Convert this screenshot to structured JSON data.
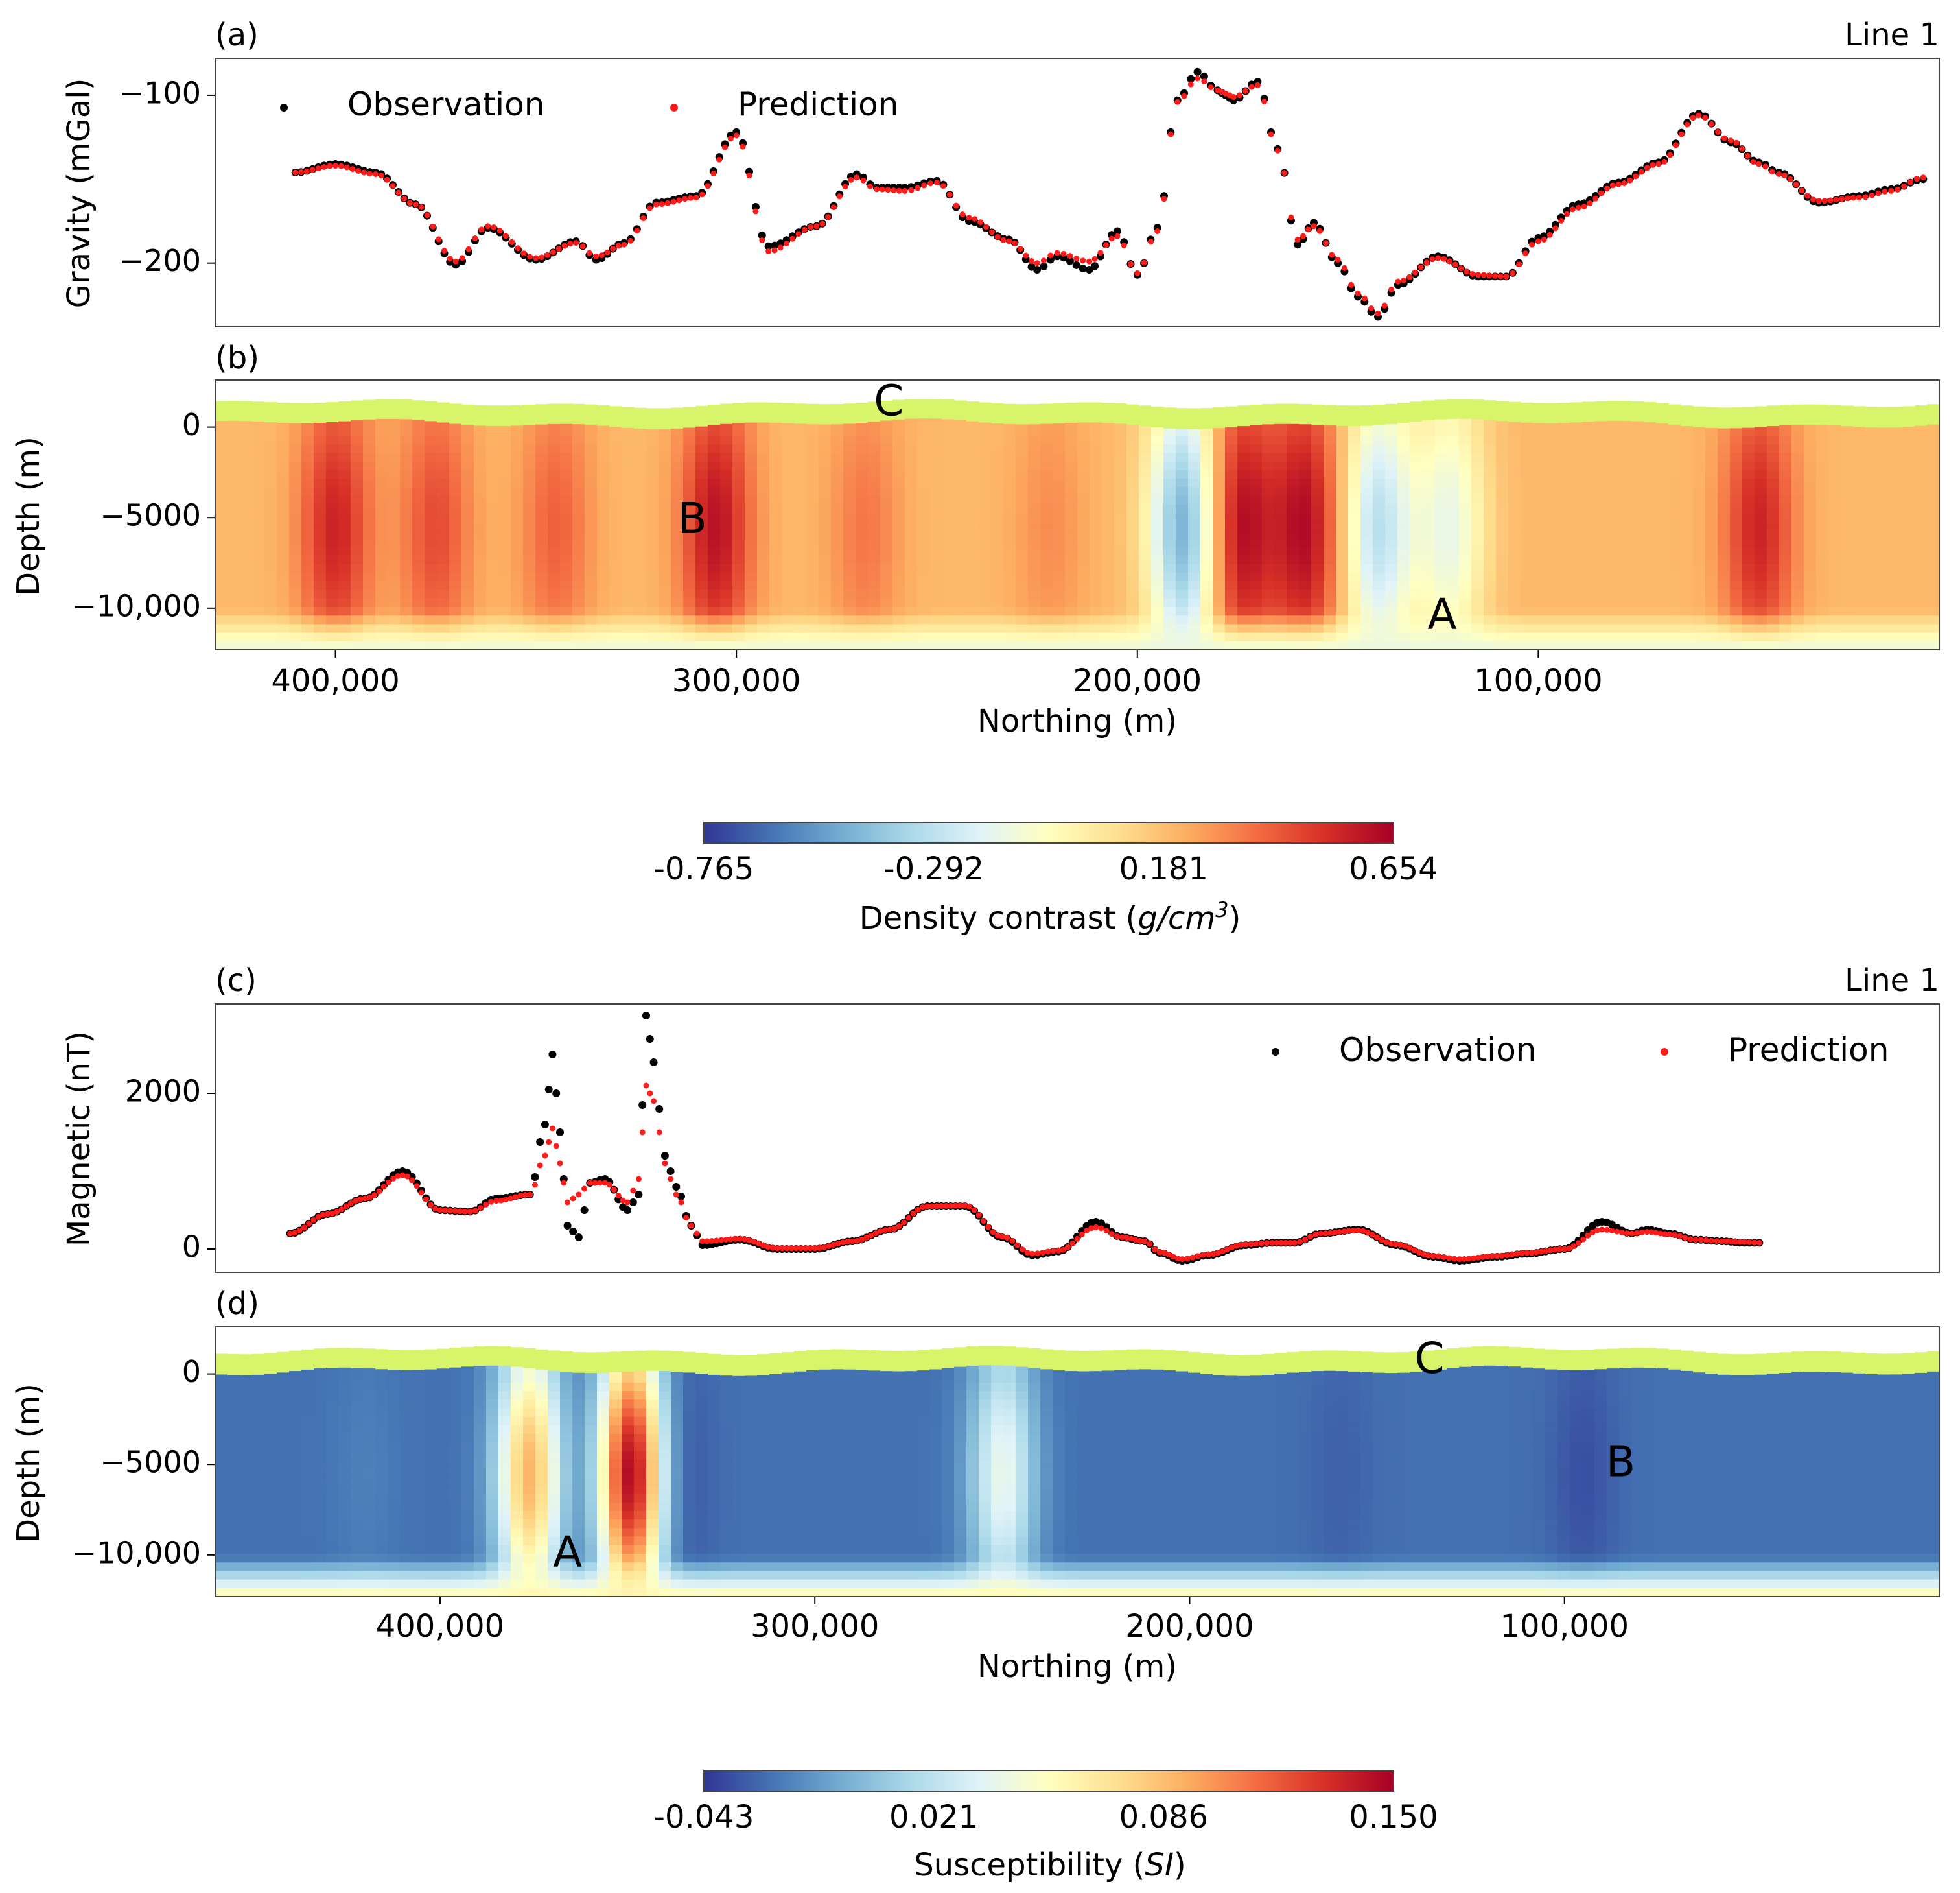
{
  "colors": {
    "observation": "#000000",
    "prediction": "#ff1a1a",
    "topography": "#d8f46a",
    "axes": "#444444"
  },
  "colormap": [
    "#313695",
    "#4575b4",
    "#74add1",
    "#abd9e9",
    "#e0f3f8",
    "#ffffbf",
    "#fee090",
    "#fdae61",
    "#f46d43",
    "#d73027",
    "#a50026"
  ],
  "chart_data": [
    {
      "panel_label": "(a)",
      "line_label": "Line 1",
      "type": "scatter",
      "ylabel": "Gravity (mGal)",
      "yticks": [
        "−100",
        "−200"
      ],
      "ytick_values": [
        -100,
        -200
      ],
      "ylim": [
        -238,
        -78
      ],
      "xlim": [
        430000,
        0
      ],
      "legend": [
        {
          "name": "Observation",
          "color": "#000000"
        },
        {
          "name": "Prediction",
          "color": "#ff1a1a"
        }
      ],
      "series": [
        {
          "name": "Observation",
          "x": [
            410000,
            400000,
            390000,
            380000,
            370000,
            362000,
            350000,
            340000,
            335000,
            328000,
            320000,
            310000,
            300000,
            292000,
            280000,
            270000,
            265000,
            258000,
            250000,
            242000,
            232000,
            225000,
            220000,
            212000,
            205000,
            200000,
            195000,
            190000,
            185000,
            180000,
            178000,
            176000,
            170000,
            165000,
            160000,
            156000,
            150000,
            145000,
            140000,
            135000,
            125000,
            115000,
            108000,
            100000,
            90000,
            80000,
            70000,
            60000,
            52000,
            45000,
            40000,
            30000,
            20000,
            12000,
            4000
          ],
          "y": [
            -146,
            -141,
            -146,
            -165,
            -201,
            -179,
            -198,
            -187,
            -198,
            -188,
            -164,
            -160,
            -122,
            -190,
            -178,
            -147,
            -155,
            -155,
            -151,
            -175,
            -186,
            -204,
            -196,
            -204,
            -181,
            -207,
            -179,
            -103,
            -86,
            -97,
            -100,
            -103,
            -92,
            -132,
            -189,
            -176,
            -200,
            -220,
            -232,
            -213,
            -196,
            -208,
            -208,
            -185,
            -165,
            -152,
            -140,
            -111,
            -128,
            -140,
            -146,
            -164,
            -160,
            -156,
            -150
          ]
        },
        {
          "name": "Prediction",
          "x": [
            410000,
            400000,
            390000,
            380000,
            370000,
            362000,
            350000,
            340000,
            335000,
            328000,
            320000,
            310000,
            300000,
            292000,
            280000,
            270000,
            265000,
            258000,
            250000,
            242000,
            232000,
            225000,
            220000,
            212000,
            205000,
            200000,
            195000,
            190000,
            185000,
            180000,
            178000,
            176000,
            170000,
            165000,
            160000,
            156000,
            150000,
            145000,
            140000,
            135000,
            125000,
            115000,
            108000,
            100000,
            90000,
            80000,
            70000,
            60000,
            52000,
            45000,
            40000,
            30000,
            20000,
            12000,
            4000
          ],
          "y": [
            -146,
            -142,
            -147,
            -165,
            -199,
            -178,
            -197,
            -188,
            -196,
            -189,
            -165,
            -161,
            -124,
            -193,
            -178,
            -149,
            -156,
            -157,
            -152,
            -173,
            -187,
            -200,
            -194,
            -199,
            -184,
            -206,
            -181,
            -104,
            -90,
            -97,
            -99,
            -101,
            -94,
            -133,
            -186,
            -178,
            -198,
            -218,
            -230,
            -211,
            -197,
            -207,
            -208,
            -187,
            -167,
            -153,
            -141,
            -112,
            -127,
            -141,
            -147,
            -163,
            -161,
            -157,
            -149
          ]
        }
      ]
    },
    {
      "panel_label": "(b)",
      "type": "heatmap",
      "ylabel": "Depth (m)",
      "yticks": [
        "0",
        "−5000",
        "−10,000"
      ],
      "ytick_values": [
        0,
        -5000,
        -10000
      ],
      "ylim": [
        -12300,
        2600
      ],
      "xticks": [
        "400,000",
        "300,000",
        "200,000",
        "100,000"
      ],
      "xtick_values": [
        400000,
        300000,
        200000,
        100000
      ],
      "xlim": [
        430000,
        0
      ],
      "xlabel": "Northing (m)",
      "annotations": [
        {
          "text": "C",
          "x": 262000,
          "y": 1300
        },
        {
          "text": "B",
          "x": 311000,
          "y": -5200
        },
        {
          "text": "A",
          "x": 124000,
          "y": -10500
        }
      ],
      "anomalies": [
        {
          "x": 400000,
          "v": 0.55
        },
        {
          "x": 375000,
          "v": 0.45
        },
        {
          "x": 345000,
          "v": 0.4
        },
        {
          "x": 305000,
          "v": 0.6
        },
        {
          "x": 268000,
          "v": 0.35
        },
        {
          "x": 222000,
          "v": 0.3
        },
        {
          "x": 188000,
          "v": -0.5
        },
        {
          "x": 175000,
          "v": 0.654
        },
        {
          "x": 158000,
          "v": 0.62
        },
        {
          "x": 140000,
          "v": -0.3
        },
        {
          "x": 122000,
          "v": -0.15
        },
        {
          "x": 45000,
          "v": 0.55
        },
        {
          "x": 20000,
          "v": 0.2
        }
      ],
      "colorbar": {
        "label": "Density contrast (g/cm³)",
        "label_main": "Density contrast (",
        "label_unit": "g/cm",
        "label_exp": "3",
        "label_end": ")",
        "vmin": -0.765,
        "vmax": 0.654,
        "ticks": [
          "-0.765",
          "-0.292",
          "0.181",
          "0.654"
        ]
      }
    },
    {
      "panel_label": "(c)",
      "line_label": "Line 1",
      "type": "scatter",
      "ylabel": "Magnetic (nT)",
      "yticks": [
        "2000",
        "0"
      ],
      "ytick_values": [
        2000,
        0
      ],
      "ylim": [
        -300,
        3150
      ],
      "xlim": [
        460000,
        0
      ],
      "legend": [
        {
          "name": "Observation",
          "color": "#000000"
        },
        {
          "name": "Prediction",
          "color": "#ff1a1a"
        }
      ],
      "series": [
        {
          "name": "Observation",
          "x": [
            440000,
            430000,
            420000,
            410000,
            400000,
            392000,
            385000,
            376000,
            372000,
            370000,
            368000,
            366000,
            363000,
            360000,
            356000,
            350000,
            347000,
            345000,
            343000,
            340000,
            337000,
            333000,
            330000,
            320000,
            310000,
            300000,
            290000,
            280000,
            270000,
            260000,
            250000,
            242000,
            235000,
            225000,
            218000,
            212000,
            208000,
            202000,
            195000,
            185000,
            178000,
            172000,
            165000,
            155000,
            145000,
            135000,
            128000,
            118000,
            110000,
            100000,
            90000,
            82000,
            78000,
            72000,
            65000,
            58000,
            52000,
            48000
          ],
          "y": [
            200,
            450,
            650,
            1000,
            500,
            480,
            650,
            700,
            1600,
            2500,
            1500,
            300,
            150,
            850,
            900,
            500,
            700,
            3000,
            2400,
            1200,
            800,
            300,
            50,
            120,
            0,
            0,
            100,
            250,
            550,
            550,
            150,
            -80,
            -30,
            350,
            150,
            100,
            -50,
            -150,
            -80,
            50,
            80,
            80,
            200,
            250,
            50,
            -100,
            -150,
            -100,
            -60,
            0,
            350,
            200,
            250,
            200,
            120,
            100,
            80,
            80
          ]
        },
        {
          "name": "Prediction",
          "x": [
            440000,
            430000,
            420000,
            410000,
            400000,
            392000,
            385000,
            376000,
            372000,
            370000,
            368000,
            366000,
            363000,
            360000,
            356000,
            350000,
            347000,
            345000,
            343000,
            340000,
            337000,
            333000,
            330000,
            320000,
            310000,
            300000,
            290000,
            280000,
            270000,
            260000,
            250000,
            242000,
            235000,
            225000,
            218000,
            212000,
            208000,
            202000,
            195000,
            185000,
            178000,
            172000,
            165000,
            155000,
            145000,
            135000,
            128000,
            118000,
            110000,
            100000,
            90000,
            82000,
            78000,
            72000,
            65000,
            58000,
            52000,
            48000
          ],
          "y": [
            200,
            450,
            650,
            950,
            500,
            480,
            620,
            700,
            1200,
            1550,
            1100,
            600,
            700,
            850,
            850,
            600,
            900,
            2100,
            1900,
            1100,
            700,
            300,
            100,
            130,
            10,
            10,
            100,
            250,
            550,
            560,
            160,
            -60,
            -20,
            280,
            150,
            100,
            -40,
            -130,
            -70,
            60,
            80,
            80,
            200,
            240,
            60,
            -90,
            -130,
            -90,
            -50,
            0,
            250,
            200,
            220,
            190,
            120,
            100,
            90,
            80
          ]
        }
      ]
    },
    {
      "panel_label": "(d)",
      "type": "heatmap",
      "ylabel": "Depth (m)",
      "yticks": [
        "0",
        "−5000",
        "−10,000"
      ],
      "ytick_values": [
        0,
        -5000,
        -10000
      ],
      "ylim": [
        -12300,
        2600
      ],
      "xticks": [
        "400,000",
        "300,000",
        "200,000",
        "100,000"
      ],
      "xtick_values": [
        400000,
        300000,
        200000,
        100000
      ],
      "xlim": [
        460000,
        0
      ],
      "xlabel": "Northing (m)",
      "annotations": [
        {
          "text": "C",
          "x": 136000,
          "y": 700
        },
        {
          "text": "B",
          "x": 85000,
          "y": -5000
        },
        {
          "text": "A",
          "x": 366000,
          "y": -10000
        }
      ],
      "anomalies": [
        {
          "x": 420000,
          "v": -0.02
        },
        {
          "x": 376000,
          "v": 0.09
        },
        {
          "x": 362000,
          "v": -0.035
        },
        {
          "x": 349000,
          "v": 0.15
        },
        {
          "x": 338000,
          "v": -0.04
        },
        {
          "x": 250000,
          "v": 0.04
        },
        {
          "x": 160000,
          "v": -0.03
        },
        {
          "x": 95000,
          "v": -0.035
        }
      ],
      "colorbar": {
        "label": "Susceptibility (SI)",
        "label_main": "Susceptibility (",
        "label_unit": "SI",
        "label_exp": "",
        "label_end": ")",
        "vmin": -0.043,
        "vmax": 0.15,
        "ticks": [
          "-0.043",
          "0.021",
          "0.086",
          "0.150"
        ]
      }
    }
  ]
}
